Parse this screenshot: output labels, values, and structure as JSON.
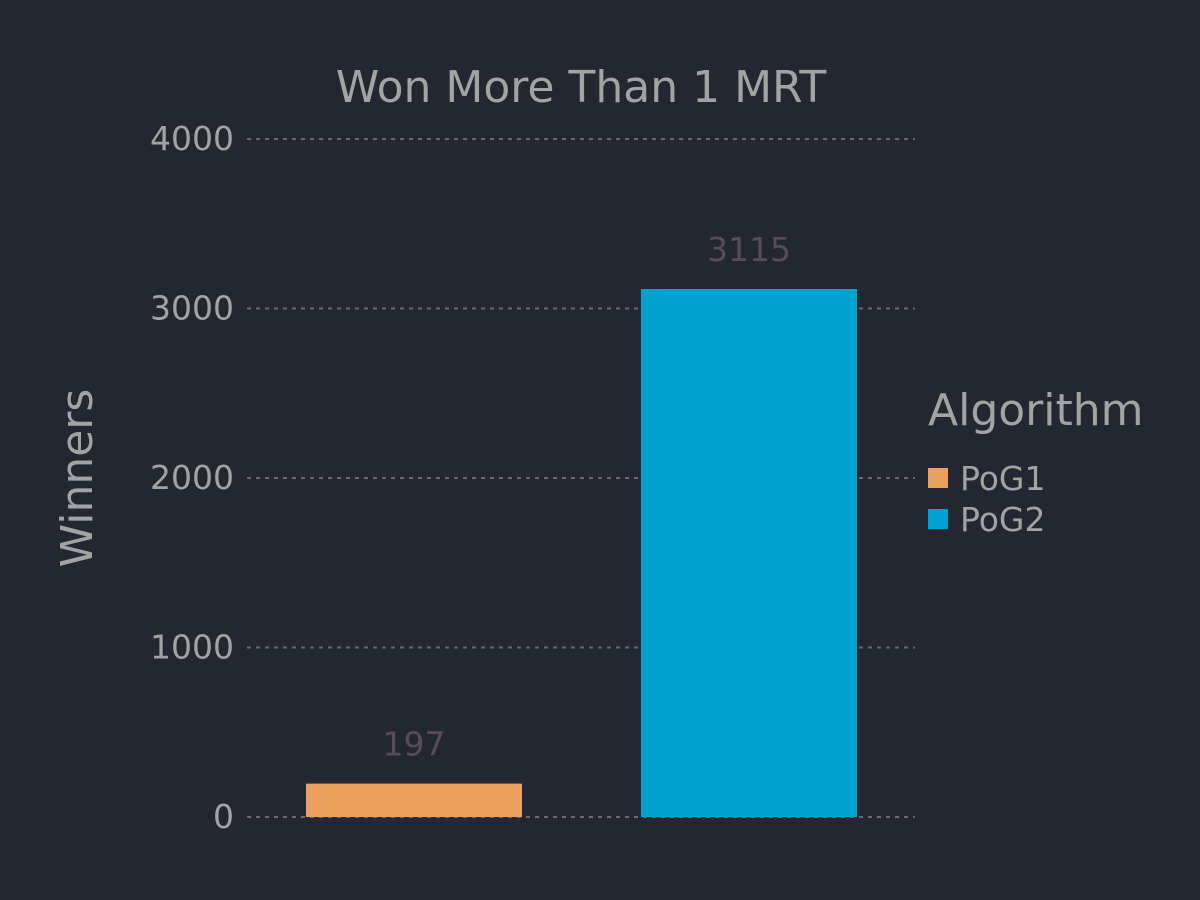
{
  "colors": {
    "background": "#222731",
    "text": "#a3a3a3",
    "grid": "#6a6a6a",
    "data_label": "#5a4b58",
    "PoG1": "#eba05e",
    "PoG2": "#00a1ce"
  },
  "chart_data": {
    "type": "bar",
    "title": "Won More Than 1 MRT",
    "ylabel": "Winners",
    "xlabel": "",
    "ylim": [
      0,
      4000
    ],
    "yticks": [
      0,
      1000,
      2000,
      3000,
      4000
    ],
    "grid": true,
    "legend_title": "Algorithm",
    "legend_position": "right",
    "series": [
      {
        "name": "PoG1",
        "value": 197,
        "label": "197"
      },
      {
        "name": "PoG2",
        "value": 3115,
        "label": "3115"
      }
    ]
  }
}
